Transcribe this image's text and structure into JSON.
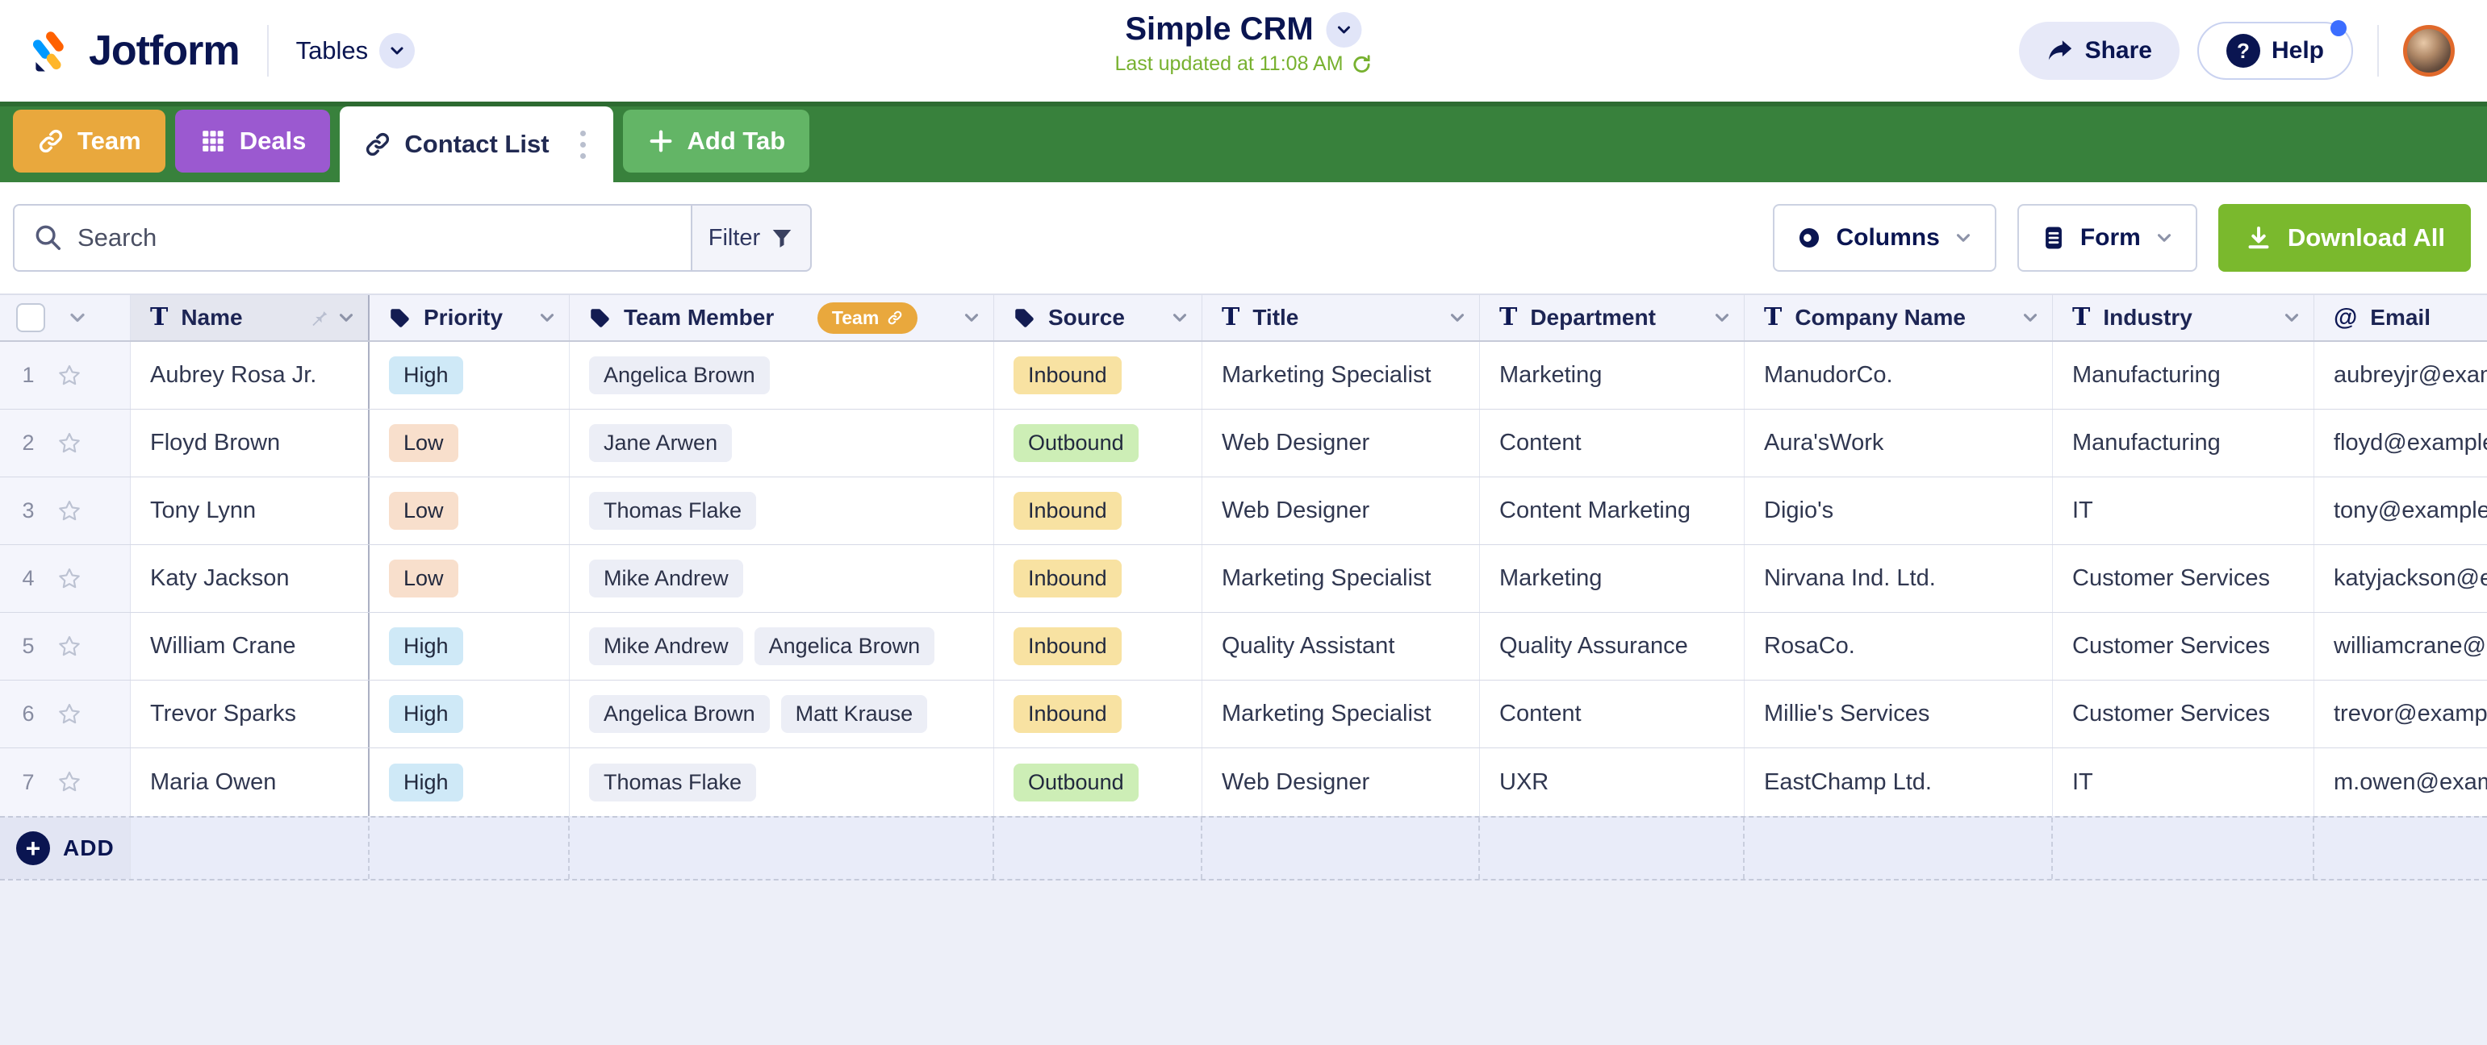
{
  "header": {
    "brand": "Jotform",
    "product_switcher": "Tables",
    "title": "Simple CRM",
    "last_updated": "Last updated at 11:08 AM",
    "share_label": "Share",
    "help_label": "Help"
  },
  "tabs": [
    {
      "label": "Team",
      "icon": "link",
      "color": "#e9a83d",
      "active": false
    },
    {
      "label": "Deals",
      "icon": "grid",
      "color": "#9b59d0",
      "active": false
    },
    {
      "label": "Contact List",
      "icon": "link",
      "color": "#ffffff",
      "active": true
    },
    {
      "label": "Add Tab",
      "icon": "plus",
      "color": "#63b566",
      "active": false
    }
  ],
  "toolbar": {
    "search_placeholder": "Search",
    "filter_label": "Filter",
    "columns_label": "Columns",
    "form_label": "Form",
    "download_all_label": "Download All"
  },
  "table": {
    "columns": [
      {
        "label": "Name",
        "type": "text",
        "pinned": true,
        "chevron": true
      },
      {
        "label": "Priority",
        "type": "tag",
        "chevron": true
      },
      {
        "label": "Team Member",
        "type": "tag",
        "badge": "Team",
        "chevron": true
      },
      {
        "label": "Source",
        "type": "tag",
        "chevron": true
      },
      {
        "label": "Title",
        "type": "text",
        "chevron": true
      },
      {
        "label": "Department",
        "type": "text",
        "chevron": true
      },
      {
        "label": "Company Name",
        "type": "text",
        "chevron": true
      },
      {
        "label": "Industry",
        "type": "text",
        "chevron": true
      },
      {
        "label": "Email",
        "type": "email",
        "chevron": false
      }
    ],
    "rows": [
      {
        "num": 1,
        "name": "Aubrey Rosa Jr.",
        "priority": "High",
        "team": [
          "Angelica Brown"
        ],
        "source": "Inbound",
        "title": "Marketing Specialist",
        "department": "Marketing",
        "company": "ManudorCo.",
        "industry": "Manufacturing",
        "email": "aubreyjr@example.com"
      },
      {
        "num": 2,
        "name": "Floyd Brown",
        "priority": "Low",
        "team": [
          "Jane Arwen"
        ],
        "source": "Outbound",
        "title": "Web Designer",
        "department": "Content",
        "company": "Aura'sWork",
        "industry": "Manufacturing",
        "email": "floyd@example.com"
      },
      {
        "num": 3,
        "name": "Tony Lynn",
        "priority": "Low",
        "team": [
          "Thomas Flake"
        ],
        "source": "Inbound",
        "title": "Web Designer",
        "department": "Content Marketing",
        "company": "Digio's",
        "industry": "IT",
        "email": "tony@example.com"
      },
      {
        "num": 4,
        "name": "Katy Jackson",
        "priority": "Low",
        "team": [
          "Mike Andrew"
        ],
        "source": "Inbound",
        "title": "Marketing Specialist",
        "department": "Marketing",
        "company": "Nirvana Ind. Ltd.",
        "industry": "Customer Services",
        "email": "katyjackson@example.com"
      },
      {
        "num": 5,
        "name": "William Crane",
        "priority": "High",
        "team": [
          "Mike Andrew",
          "Angelica Brown"
        ],
        "source": "Inbound",
        "title": "Quality Assistant",
        "department": "Quality Assurance",
        "company": "RosaCo.",
        "industry": "Customer Services",
        "email": "williamcrane@example.com"
      },
      {
        "num": 6,
        "name": "Trevor Sparks",
        "priority": "High",
        "team": [
          "Angelica Brown",
          "Matt Krause"
        ],
        "source": "Inbound",
        "title": "Marketing Specialist",
        "department": "Content",
        "company": "Millie's Services",
        "industry": "Customer Services",
        "email": "trevor@example.com"
      },
      {
        "num": 7,
        "name": "Maria Owen",
        "priority": "High",
        "team": [
          "Thomas Flake"
        ],
        "source": "Outbound",
        "title": "Web Designer",
        "department": "UXR",
        "company": "EastChamp Ltd.",
        "industry": "IT",
        "email": "m.owen@example.com"
      }
    ],
    "add_label": "ADD"
  },
  "badge_colors": {
    "High": "#cfe9f7",
    "Low": "#f8dfcc",
    "Inbound": "#f8e2a2",
    "Outbound": "#cdeeb6"
  },
  "colors": {
    "navy": "#0a1551",
    "tab_bar_green": "#38813c",
    "download_green": "#7ab92d",
    "updated_green": "#77b12f",
    "team_badge_orange": "#e9a83d"
  }
}
